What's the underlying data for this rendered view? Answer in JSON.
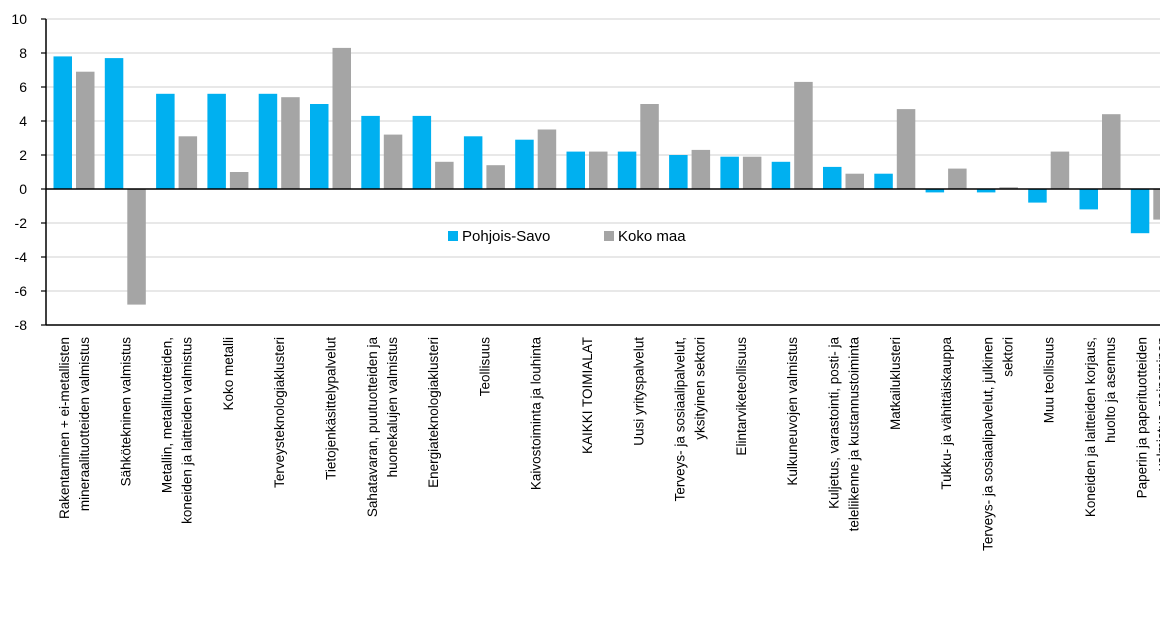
{
  "chart_data": {
    "type": "bar",
    "title": "",
    "xlabel": "",
    "ylabel": "",
    "ylim": [
      -8,
      10
    ],
    "yticks": [
      10,
      8,
      6,
      4,
      2,
      0,
      -2,
      -4,
      -6,
      -8
    ],
    "grid": true,
    "legend_position": "center",
    "categories": [
      [
        "Rakentaminen + ei-metallisten",
        "mineraalituotteiden valmistus"
      ],
      [
        "Sähkötekninen valmistus"
      ],
      [
        "Metallin, metallituotteiden,",
        "koneiden ja laitteiden valmistus"
      ],
      [
        "Koko metalli"
      ],
      [
        "Terveysteknologiaklusteri"
      ],
      [
        "Tietojenkäsittelypalvelut"
      ],
      [
        "Sahatavaran, puutuotteiden ja",
        "huonekalujen valmistus"
      ],
      [
        "Energiateknologiaklusteri"
      ],
      [
        "Teollisuus"
      ],
      [
        "Kaivostoiminta ja louhinta"
      ],
      [
        "KAIKKI TOIMIALAT"
      ],
      [
        "Uusi yrityspalvelut"
      ],
      [
        "Terveys- ja sosiaalipalvelut,",
        "yksityinen sektori"
      ],
      [
        "Elintarviketeollisuus"
      ],
      [
        "Kulkuneuvojen valmistus"
      ],
      [
        "Kuljetus, varastointi, posti- ja",
        "teleliikenne ja kustannustoiminta"
      ],
      [
        "Matkailuklusteri"
      ],
      [
        "Tukku- ja vähittäiskauppa"
      ],
      [
        "Terveys- ja sosiaalipalvelut, julkinen",
        "sektori"
      ],
      [
        "Muu teollisuus"
      ],
      [
        "Koneiden ja laitteiden korjaus,",
        "huolto ja asennus"
      ],
      [
        "Paperin ja paperituotteiden",
        "valmistus, painaminen"
      ]
    ],
    "series": [
      {
        "name": "Pohjois-Savo",
        "color": "#00B0F0",
        "values": [
          7.8,
          7.7,
          5.6,
          5.6,
          5.6,
          5.0,
          4.3,
          4.3,
          3.1,
          2.9,
          2.2,
          2.2,
          2.0,
          1.9,
          1.6,
          1.3,
          0.9,
          -0.2,
          -0.2,
          -0.8,
          -1.2,
          -2.6
        ]
      },
      {
        "name": "Koko maa",
        "color": "#A5A5A5",
        "values": [
          6.9,
          -6.8,
          3.1,
          1.0,
          5.4,
          8.3,
          3.2,
          1.6,
          1.4,
          3.5,
          2.2,
          5.0,
          2.3,
          1.9,
          6.3,
          0.9,
          4.7,
          1.2,
          0.1,
          2.2,
          4.4,
          -1.8
        ]
      }
    ]
  }
}
